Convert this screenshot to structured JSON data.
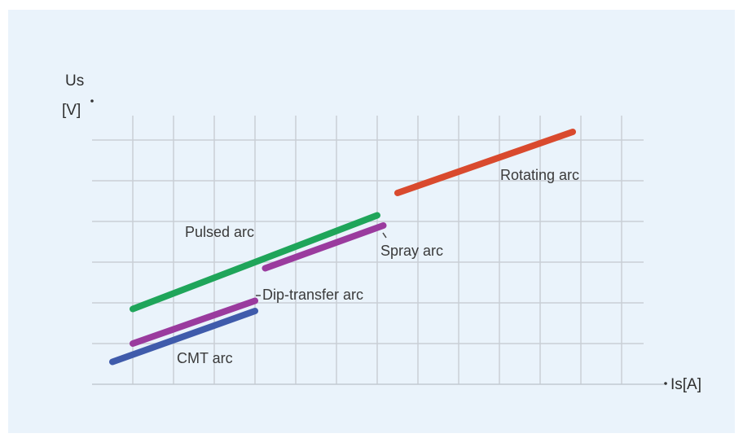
{
  "chart_data": {
    "type": "line",
    "ylabel_line1": "Us",
    "ylabel_line2": "[V]",
    "xlabel": "Is[A]",
    "xlim": [
      0,
      13.5
    ],
    "ylim": [
      0,
      6
    ],
    "grid": true,
    "series": [
      {
        "name": "CMT arc",
        "color": "#3f5bab",
        "x": [
          0.5,
          4.0
        ],
        "y": [
          0.55,
          1.8
        ]
      },
      {
        "name": "Dip-transfer arc",
        "color": "#9a3b9e",
        "x": [
          1.0,
          4.0
        ],
        "y": [
          1.0,
          2.05
        ]
      },
      {
        "name": "Pulsed arc",
        "color": "#1fa55a",
        "x": [
          1.0,
          7.0
        ],
        "y": [
          1.85,
          4.15
        ]
      },
      {
        "name": "Spray arc",
        "color": "#9a3b9e",
        "x": [
          4.25,
          7.15
        ],
        "y": [
          2.85,
          3.9
        ]
      },
      {
        "name": "Rotating arc",
        "color": "#d94a2e",
        "x": [
          7.5,
          11.8
        ],
        "y": [
          4.7,
          6.2
        ]
      }
    ]
  }
}
